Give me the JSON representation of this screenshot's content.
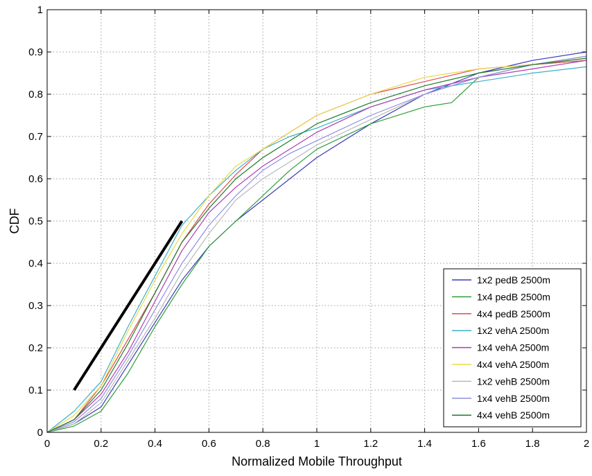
{
  "chart_data": {
    "type": "line",
    "title": "",
    "xlabel": "Normalized Mobile Throughput",
    "ylabel": "CDF",
    "xlim": [
      0,
      2
    ],
    "ylim": [
      0,
      1
    ],
    "x_ticks": [
      "0",
      "0.2",
      "0.4",
      "0.6",
      "0.8",
      "1",
      "1.2",
      "1.4",
      "1.6",
      "1.8",
      "2"
    ],
    "y_ticks": [
      "0",
      "0.1",
      "0.2",
      "0.3",
      "0.4",
      "0.5",
      "0.6",
      "0.7",
      "0.8",
      "0.9",
      "1"
    ],
    "grid": true,
    "legend_position": "bottom-right",
    "reference_line": {
      "x": [
        0.1,
        0.5
      ],
      "y": [
        0.1,
        0.5
      ],
      "color": "#000000"
    },
    "series": [
      {
        "name": "1x2 pedB 2500m",
        "color": "#3a3ab8",
        "x": [
          0,
          0.1,
          0.2,
          0.3,
          0.4,
          0.5,
          0.6,
          0.7,
          0.8,
          0.9,
          1.0,
          1.2,
          1.4,
          1.6,
          1.8,
          2.0
        ],
        "y": [
          0,
          0.02,
          0.06,
          0.16,
          0.26,
          0.36,
          0.44,
          0.5,
          0.55,
          0.6,
          0.65,
          0.73,
          0.8,
          0.85,
          0.88,
          0.9
        ]
      },
      {
        "name": "1x4 pedB 2500m",
        "color": "#2e9e3a",
        "x": [
          0,
          0.1,
          0.2,
          0.3,
          0.4,
          0.5,
          0.6,
          0.7,
          0.8,
          0.9,
          1.0,
          1.2,
          1.4,
          1.5,
          1.6,
          1.8,
          2.0
        ],
        "y": [
          0,
          0.015,
          0.05,
          0.14,
          0.25,
          0.35,
          0.44,
          0.5,
          0.56,
          0.62,
          0.67,
          0.73,
          0.77,
          0.78,
          0.84,
          0.87,
          0.88
        ]
      },
      {
        "name": "4x4 pedB 2500m",
        "color": "#e04a4a",
        "x": [
          0,
          0.1,
          0.2,
          0.3,
          0.4,
          0.5,
          0.6,
          0.7,
          0.8,
          0.9,
          1.0,
          1.2,
          1.4,
          1.6,
          1.8,
          2.0
        ],
        "y": [
          0,
          0.03,
          0.11,
          0.22,
          0.33,
          0.45,
          0.54,
          0.61,
          0.67,
          0.71,
          0.75,
          0.8,
          0.83,
          0.86,
          0.87,
          0.88
        ]
      },
      {
        "name": "1x2 vehA 2500m",
        "color": "#3ab0c8",
        "x": [
          0,
          0.1,
          0.2,
          0.3,
          0.4,
          0.5,
          0.6,
          0.7,
          0.8,
          0.9,
          1.0,
          1.2,
          1.4,
          1.6,
          1.8,
          2.0
        ],
        "y": [
          0,
          0.05,
          0.12,
          0.25,
          0.37,
          0.49,
          0.56,
          0.62,
          0.67,
          0.7,
          0.72,
          0.77,
          0.81,
          0.83,
          0.85,
          0.865
        ]
      },
      {
        "name": "1x4 vehA 2500m",
        "color": "#b03ab0",
        "x": [
          0,
          0.1,
          0.2,
          0.3,
          0.4,
          0.5,
          0.6,
          0.7,
          0.8,
          0.9,
          1.0,
          1.2,
          1.4,
          1.6,
          1.8,
          2.0
        ],
        "y": [
          0,
          0.03,
          0.09,
          0.19,
          0.31,
          0.43,
          0.52,
          0.58,
          0.63,
          0.67,
          0.71,
          0.77,
          0.81,
          0.84,
          0.86,
          0.88
        ]
      },
      {
        "name": "4x4 vehA 2500m",
        "color": "#e8d84a",
        "x": [
          0,
          0.1,
          0.2,
          0.3,
          0.4,
          0.5,
          0.6,
          0.7,
          0.8,
          0.9,
          1.0,
          1.2,
          1.4,
          1.6,
          1.8,
          2.0
        ],
        "y": [
          0,
          0.04,
          0.11,
          0.24,
          0.36,
          0.47,
          0.56,
          0.63,
          0.67,
          0.71,
          0.75,
          0.8,
          0.84,
          0.86,
          0.87,
          0.885
        ]
      },
      {
        "name": "1x2 vehB 2500m",
        "color": "#b8b8b8",
        "x": [
          0,
          0.1,
          0.2,
          0.3,
          0.4,
          0.5,
          0.6,
          0.7,
          0.8,
          0.9,
          1.0,
          1.2,
          1.4,
          1.6,
          1.8,
          2.0
        ],
        "y": [
          0,
          0.02,
          0.07,
          0.17,
          0.27,
          0.38,
          0.47,
          0.55,
          0.6,
          0.64,
          0.68,
          0.74,
          0.8,
          0.84,
          0.87,
          0.89
        ]
      },
      {
        "name": "1x4 vehB 2500m",
        "color": "#8e8ee0",
        "x": [
          0,
          0.1,
          0.2,
          0.3,
          0.4,
          0.5,
          0.6,
          0.7,
          0.8,
          0.9,
          1.0,
          1.2,
          1.4,
          1.6,
          1.8,
          2.0
        ],
        "y": [
          0,
          0.025,
          0.08,
          0.18,
          0.29,
          0.4,
          0.49,
          0.56,
          0.62,
          0.66,
          0.69,
          0.75,
          0.8,
          0.84,
          0.87,
          0.89
        ]
      },
      {
        "name": "4x4 vehB 2500m",
        "color": "#1f7a2a",
        "x": [
          0,
          0.1,
          0.2,
          0.3,
          0.4,
          0.5,
          0.6,
          0.7,
          0.8,
          0.9,
          1.0,
          1.2,
          1.4,
          1.6,
          1.8,
          2.0
        ],
        "y": [
          0,
          0.03,
          0.1,
          0.21,
          0.33,
          0.45,
          0.53,
          0.6,
          0.65,
          0.69,
          0.73,
          0.78,
          0.82,
          0.85,
          0.87,
          0.885
        ]
      }
    ]
  }
}
